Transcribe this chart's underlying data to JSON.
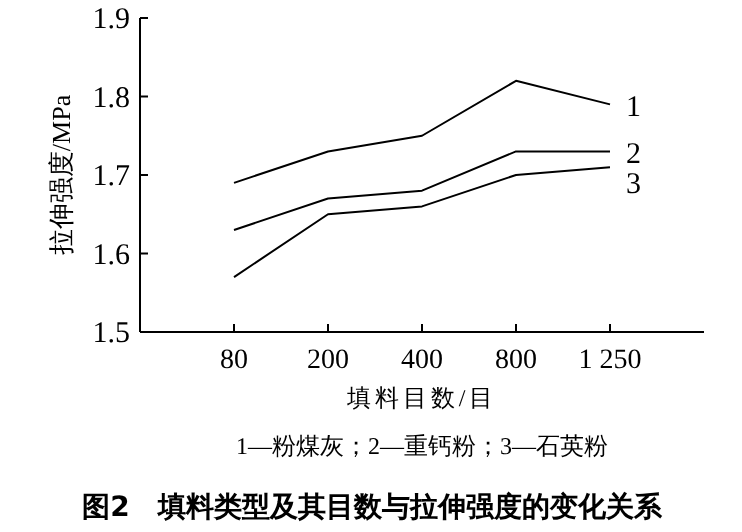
{
  "chart_data": {
    "type": "line",
    "title": "图2　填料类型及其目数与拉伸强度的变化关系",
    "xlabel": "填料目数/目",
    "ylabel": "拉伸强度/MPa",
    "categories": [
      "80",
      "200",
      "400",
      "800",
      "1 250"
    ],
    "series": [
      {
        "name": "1",
        "color": "#000000",
        "values": [
          1.69,
          1.73,
          1.75,
          1.82,
          1.79
        ]
      },
      {
        "name": "2",
        "color": "#000000",
        "values": [
          1.63,
          1.67,
          1.68,
          1.73,
          1.73
        ]
      },
      {
        "name": "3",
        "color": "#000000",
        "values": [
          1.57,
          1.65,
          1.66,
          1.7,
          1.71
        ]
      }
    ],
    "ylim": [
      1.5,
      1.9
    ],
    "yticks": [
      1.5,
      1.6,
      1.7,
      1.8,
      1.9
    ],
    "marker": "none",
    "line_style": "solid",
    "annotations": [
      "1—粉煤灰；2—重钙粉；3—石英粉"
    ]
  }
}
